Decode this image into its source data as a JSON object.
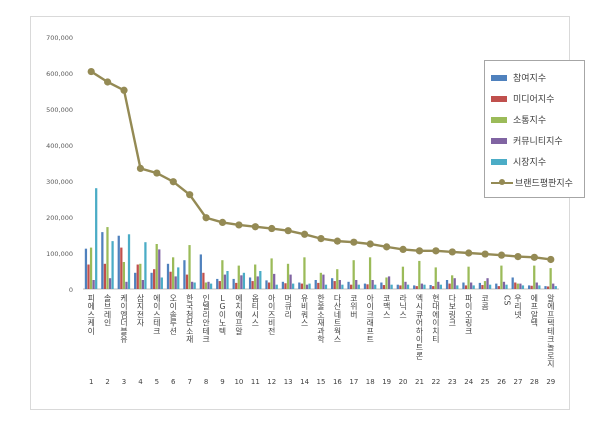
{
  "chart_data": {
    "type": "bar",
    "title": "",
    "xlabel": "",
    "ylabel": "",
    "ylim": [
      0,
      700000
    ],
    "y_ticks": [
      "0",
      "100,000",
      "200,000",
      "300,000",
      "400,000",
      "500,000",
      "600,000",
      "700,000"
    ],
    "grid": false,
    "legend_position": "right",
    "index_labels": [
      "1",
      "2",
      "3",
      "4",
      "5",
      "6",
      "7",
      "8",
      "9",
      "10",
      "11",
      "12",
      "13",
      "14",
      "15",
      "16",
      "17",
      "18",
      "19",
      "20",
      "21",
      "22",
      "23",
      "24",
      "25",
      "26",
      "27",
      "28",
      "29"
    ],
    "categories": [
      "피에스케이",
      "솔브레인",
      "케이엠더블유",
      "삼지전자",
      "에이스테크",
      "오이솔루션",
      "한국첨단소재",
      "인텔리안테크",
      "LG이노텍",
      "에치에프알",
      "옵티시스",
      "아이즈비전",
      "머큐리",
      "유비쿼스",
      "한울소재과학",
      "다산네트웍스",
      "코위버",
      "아이크래프트",
      "코맥스",
      "라닉스",
      "엑시큐어하이트론",
      "현대에이치티",
      "다보링크",
      "파이오링크",
      "코콤",
      "CS",
      "우리넷",
      "에프알텍",
      "알에프텍테크놀로지"
    ],
    "series": [
      {
        "name": "참여지수",
        "color": "#4f81bd",
        "values": [
          112000,
          158000,
          148000,
          45000,
          45000,
          70000,
          80000,
          96000,
          28000,
          28000,
          32000,
          24000,
          20000,
          18000,
          25000,
          30000,
          20000,
          15000,
          18000,
          12000,
          10000,
          11000,
          25000,
          18000,
          17000,
          15000,
          32000,
          10000,
          8000
        ]
      },
      {
        "name": "미디어지수",
        "color": "#c0504d",
        "values": [
          68000,
          70000,
          115000,
          68000,
          55000,
          48000,
          40000,
          45000,
          22000,
          17000,
          22000,
          18000,
          16000,
          15000,
          17000,
          22000,
          12000,
          13000,
          11000,
          10000,
          8000,
          8000,
          15000,
          10000,
          11000,
          8000,
          18000,
          9000,
          7000
        ]
      },
      {
        "name": "소통지수",
        "color": "#9bbb59",
        "values": [
          115000,
          172000,
          75000,
          70000,
          125000,
          88000,
          122000,
          18000,
          80000,
          65000,
          68000,
          85000,
          70000,
          88000,
          45000,
          55000,
          80000,
          88000,
          32000,
          62000,
          78000,
          60000,
          38000,
          62000,
          22000,
          65000,
          15000,
          65000,
          58000
        ]
      },
      {
        "name": "커뮤니티지수",
        "color": "#8064a2",
        "values": [
          25000,
          30000,
          20000,
          25000,
          110000,
          35000,
          20000,
          20000,
          40000,
          38000,
          35000,
          42000,
          40000,
          12000,
          40000,
          25000,
          25000,
          25000,
          35000,
          20000,
          15000,
          20000,
          30000,
          18000,
          30000,
          20000,
          15000,
          18000,
          15000
        ]
      },
      {
        "name": "시장지수",
        "color": "#4bacc6",
        "values": [
          280000,
          133000,
          152000,
          130000,
          32000,
          60000,
          18000,
          15000,
          50000,
          45000,
          50000,
          12000,
          15000,
          15000,
          12000,
          12000,
          12000,
          12000,
          12000,
          12000,
          12000,
          12000,
          10000,
          10000,
          12000,
          12000,
          10000,
          10000,
          8000
        ]
      }
    ],
    "line_series": {
      "name": "브랜드평판지수",
      "color": "#948a54",
      "values": [
        604000,
        575000,
        552000,
        335000,
        322000,
        298000,
        262000,
        198000,
        185000,
        178000,
        173000,
        168000,
        162000,
        152000,
        140000,
        133000,
        130000,
        125000,
        117000,
        110000,
        106000,
        106000,
        103000,
        100000,
        97000,
        94000,
        90000,
        88000,
        82000
      ]
    }
  }
}
